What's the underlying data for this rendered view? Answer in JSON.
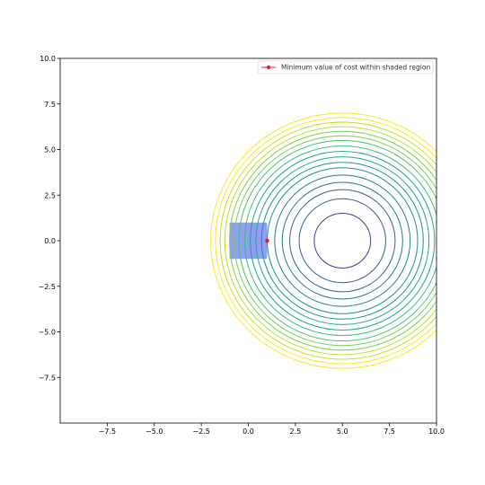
{
  "chart_data": {
    "type": "contour",
    "xlim": [
      -10,
      10
    ],
    "ylim": [
      -10,
      10
    ],
    "x_ticks": [
      -7.5,
      -5.0,
      -2.5,
      0.0,
      2.5,
      5.0,
      7.5,
      10.0
    ],
    "y_ticks": [
      -7.5,
      -5.0,
      -2.5,
      0.0,
      2.5,
      5.0,
      7.5,
      10.0
    ],
    "x_tick_labels": [
      "−7.5",
      "−5.0",
      "−2.5",
      "0.0",
      "2.5",
      "5.0",
      "7.5",
      "10.0"
    ],
    "y_tick_labels": [
      "−7.5",
      "−5.0",
      "−2.5",
      "0.0",
      "2.5",
      "5.0",
      "7.5",
      "10.0"
    ],
    "grid": false,
    "contour_center": [
      5,
      0
    ],
    "contour_radii": [
      1.5,
      2.3,
      2.8,
      3.2,
      3.6,
      4.0,
      4.3,
      4.6,
      4.9,
      5.2,
      5.5,
      5.75,
      6.0,
      6.25,
      6.5,
      6.75,
      7.0
    ],
    "colormap": [
      "#3b3f8c",
      "#355f8d",
      "#2a788e",
      "#21918c",
      "#22a884",
      "#44bf70",
      "#7ad151",
      "#bddf26",
      "#fde725"
    ],
    "shaded_region": {
      "x": [
        -1,
        1
      ],
      "y": [
        -1,
        1
      ],
      "color": "#6b7cf0"
    },
    "minimum_point": {
      "x": 1,
      "y": 0,
      "color": "#e8211c"
    },
    "legend": {
      "position": "top-right",
      "entries": [
        {
          "label": "Minimum value of cost within shaded region",
          "color": "#e8211c",
          "marker": "circle-line"
        }
      ]
    }
  }
}
